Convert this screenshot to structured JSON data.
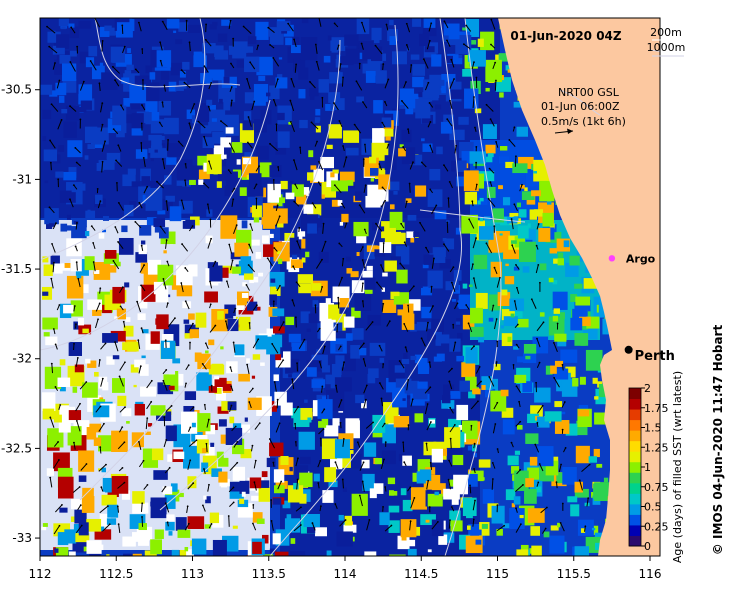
{
  "title": "01-Jun-2020 04Z",
  "depth_legend": {
    "shallow": "200m",
    "deep": "1000m"
  },
  "current_legend": {
    "product": "NRT00 GSL",
    "time": "01-Jun 06:00Z",
    "scale": "0.5m/s (1kt 6h)"
  },
  "places": [
    {
      "name": "Argo",
      "lon": 115.75,
      "lat": -31.44,
      "marker": "magenta-star"
    },
    {
      "name": "Perth",
      "lon": 115.86,
      "lat": -31.95,
      "marker": "black-dot"
    }
  ],
  "axes": {
    "x_ticks": [
      "112",
      "112.5",
      "113",
      "113.5",
      "114",
      "114.5",
      "115",
      "115.5",
      "116"
    ],
    "y_ticks": [
      "-30.5",
      "-31",
      "-31.5",
      "-32",
      "-32.5",
      "-33"
    ],
    "lon_range": [
      112.0,
      116.0
    ],
    "lat_range": [
      -33.1,
      -30.1
    ]
  },
  "colorbar": {
    "label": "Age (days) of filled SST (wrt latest)",
    "ticks": [
      "0",
      "0.25",
      "0.5",
      "0.75",
      "1",
      "1.25",
      "1.5",
      "1.75",
      "2"
    ],
    "colors": [
      "#2b0a6e",
      "#0000b4",
      "#0050e6",
      "#009be6",
      "#00c8c8",
      "#00d28c",
      "#2dd250",
      "#8cf000",
      "#e6f000",
      "#ffdc00",
      "#ffaa00",
      "#ff7800",
      "#e63c00",
      "#b40000",
      "#7d0000"
    ]
  },
  "credit": "© IMOS 04-Jun-2020 11:47 Hobart",
  "colors": {
    "land": "#fcc8a0",
    "ocean_deep": "#0a1e9b",
    "ocean_mid": "#0a3cc3",
    "cloud_gap": "#ffffff",
    "contour": "#d2d2e6"
  }
}
